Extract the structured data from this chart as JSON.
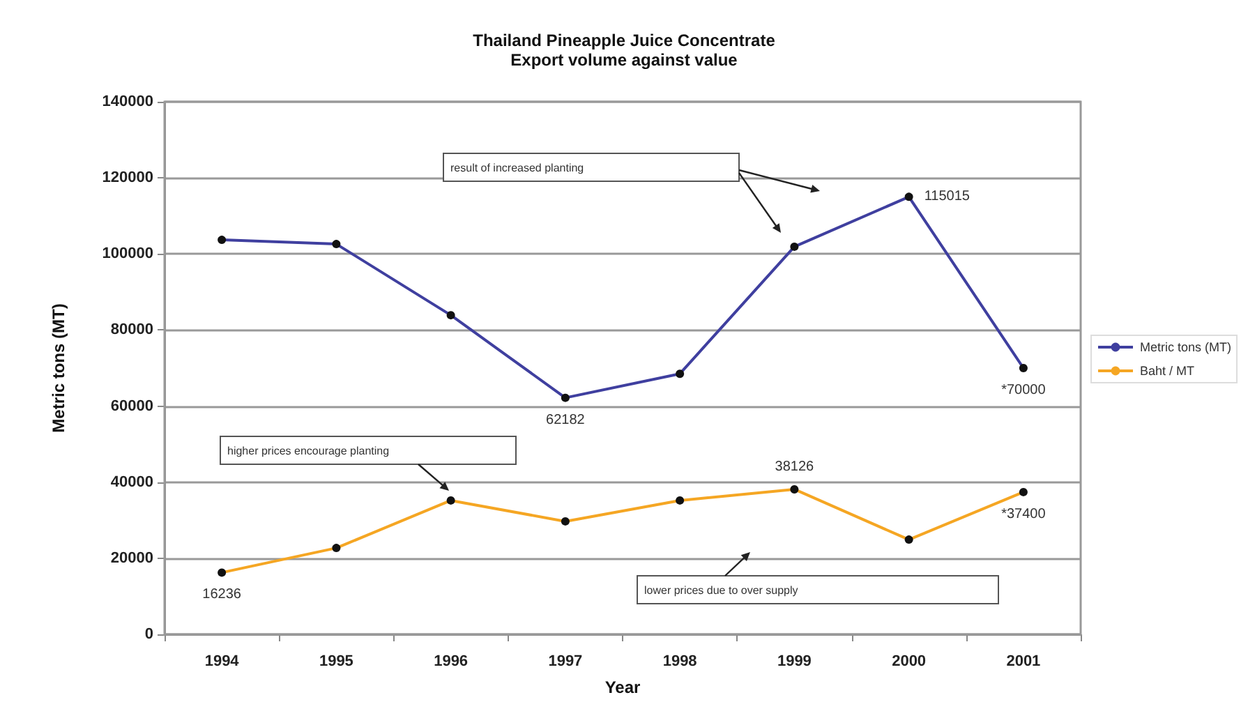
{
  "chart_data": {
    "type": "line",
    "title": "Thailand Pineapple Juice Concentrate",
    "subtitle": "Export volume against value",
    "xlabel": "Year",
    "ylabel": "Metric tons (MT)",
    "categories": [
      "1994",
      "1995",
      "1996",
      "1997",
      "1998",
      "1999",
      "2000",
      "2001"
    ],
    "series": [
      {
        "name": "Metric tons (MT)",
        "color": "#3f3f9f",
        "values": [
          103700,
          102600,
          83900,
          62182,
          68500,
          101900,
          115015,
          70000
        ],
        "value_labels": [
          null,
          null,
          null,
          "62182",
          null,
          null,
          "115015",
          "*70000"
        ]
      },
      {
        "name": "Baht / MT",
        "color": "#f5a623",
        "values": [
          16236,
          22700,
          35200,
          29700,
          35200,
          38126,
          24900,
          37400
        ],
        "value_labels": [
          "16236",
          null,
          null,
          null,
          null,
          "38126",
          null,
          "*37400"
        ]
      }
    ],
    "ylim": [
      0,
      140000
    ],
    "yticks": [
      0,
      20000,
      40000,
      60000,
      80000,
      100000,
      120000,
      140000
    ],
    "grid": "y",
    "legend": "right",
    "marker": "circle",
    "line_style": "solid",
    "annotations": [
      "result of increased planting",
      "higher prices encourage planting",
      "lower prices due to over supply"
    ]
  }
}
